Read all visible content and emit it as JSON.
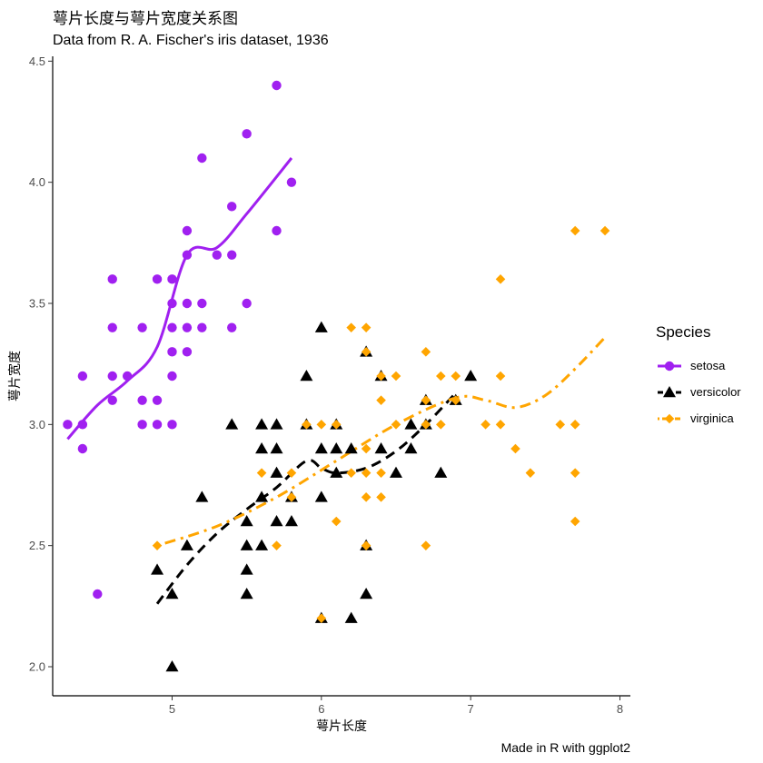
{
  "chart_data": {
    "type": "scatter",
    "title": "萼片长度与萼片宽度关系图",
    "subtitle": "Data from R. A. Fischer's iris dataset, 1936",
    "xlabel": "萼片长度",
    "ylabel": "萼片宽度",
    "caption": "Made in R with ggplot2",
    "xlim": [
      4.2,
      8.07
    ],
    "ylim": [
      1.88,
      4.52
    ],
    "xticks": [
      5,
      6,
      7,
      8
    ],
    "yticks": [
      2.0,
      2.5,
      3.0,
      3.5,
      4.0,
      4.5
    ],
    "xtick_labels": [
      "5",
      "6",
      "7",
      "8"
    ],
    "ytick_labels": [
      "2.0",
      "2.5",
      "3.0",
      "3.5",
      "4.0",
      "4.5"
    ],
    "legend": {
      "title": "Species",
      "position": "right"
    },
    "series": [
      {
        "name": "setosa",
        "color": "#A020F0",
        "marker": "circle",
        "line_style": "solid",
        "points": [
          [
            4.3,
            3.0
          ],
          [
            4.4,
            3.0
          ],
          [
            4.4,
            2.9
          ],
          [
            4.4,
            3.2
          ],
          [
            4.5,
            2.3
          ],
          [
            4.6,
            3.1
          ],
          [
            4.6,
            3.2
          ],
          [
            4.6,
            3.4
          ],
          [
            4.6,
            3.6
          ],
          [
            4.7,
            3.2
          ],
          [
            4.8,
            3.0
          ],
          [
            4.8,
            3.1
          ],
          [
            4.8,
            3.4
          ],
          [
            4.9,
            3.0
          ],
          [
            4.9,
            3.1
          ],
          [
            4.9,
            3.6
          ],
          [
            5.0,
            3.0
          ],
          [
            5.0,
            3.2
          ],
          [
            5.0,
            3.3
          ],
          [
            5.0,
            3.4
          ],
          [
            5.0,
            3.5
          ],
          [
            5.0,
            3.6
          ],
          [
            5.1,
            3.3
          ],
          [
            5.1,
            3.4
          ],
          [
            5.1,
            3.5
          ],
          [
            5.1,
            3.7
          ],
          [
            5.1,
            3.8
          ],
          [
            5.2,
            3.4
          ],
          [
            5.2,
            3.5
          ],
          [
            5.2,
            4.1
          ],
          [
            5.3,
            3.7
          ],
          [
            5.4,
            3.4
          ],
          [
            5.4,
            3.7
          ],
          [
            5.4,
            3.9
          ],
          [
            5.5,
            3.5
          ],
          [
            5.5,
            4.2
          ],
          [
            5.7,
            3.8
          ],
          [
            5.7,
            4.4
          ],
          [
            5.8,
            4.0
          ]
        ],
        "smooth": [
          [
            4.3,
            2.94
          ],
          [
            4.5,
            3.08
          ],
          [
            4.7,
            3.18
          ],
          [
            4.9,
            3.32
          ],
          [
            5.1,
            3.7
          ],
          [
            5.3,
            3.73
          ],
          [
            5.5,
            3.87
          ],
          [
            5.8,
            4.1
          ]
        ]
      },
      {
        "name": "versicolor",
        "color": "#000000",
        "marker": "triangle",
        "line_style": "dashed",
        "points": [
          [
            4.9,
            2.4
          ],
          [
            5.0,
            2.0
          ],
          [
            5.0,
            2.3
          ],
          [
            5.1,
            2.5
          ],
          [
            5.2,
            2.7
          ],
          [
            5.4,
            3.0
          ],
          [
            5.5,
            2.3
          ],
          [
            5.5,
            2.4
          ],
          [
            5.5,
            2.5
          ],
          [
            5.5,
            2.6
          ],
          [
            5.6,
            2.5
          ],
          [
            5.6,
            2.7
          ],
          [
            5.6,
            2.9
          ],
          [
            5.6,
            3.0
          ],
          [
            5.7,
            2.6
          ],
          [
            5.7,
            2.8
          ],
          [
            5.7,
            2.9
          ],
          [
            5.7,
            3.0
          ],
          [
            5.8,
            2.6
          ],
          [
            5.8,
            2.7
          ],
          [
            5.9,
            3.0
          ],
          [
            5.9,
            3.2
          ],
          [
            6.0,
            2.2
          ],
          [
            6.0,
            2.7
          ],
          [
            6.0,
            2.9
          ],
          [
            6.0,
            3.4
          ],
          [
            6.1,
            2.8
          ],
          [
            6.1,
            2.9
          ],
          [
            6.1,
            3.0
          ],
          [
            6.2,
            2.2
          ],
          [
            6.2,
            2.9
          ],
          [
            6.3,
            2.3
          ],
          [
            6.3,
            2.5
          ],
          [
            6.3,
            3.3
          ],
          [
            6.4,
            2.9
          ],
          [
            6.4,
            3.2
          ],
          [
            6.5,
            2.8
          ],
          [
            6.6,
            2.9
          ],
          [
            6.6,
            3.0
          ],
          [
            6.7,
            3.0
          ],
          [
            6.7,
            3.1
          ],
          [
            6.8,
            2.8
          ],
          [
            6.9,
            3.1
          ],
          [
            7.0,
            3.2
          ]
        ],
        "smooth": [
          [
            4.9,
            2.26
          ],
          [
            5.1,
            2.42
          ],
          [
            5.3,
            2.55
          ],
          [
            5.5,
            2.65
          ],
          [
            5.7,
            2.74
          ],
          [
            5.9,
            2.85
          ],
          [
            6.0,
            2.82
          ],
          [
            6.1,
            2.8
          ],
          [
            6.3,
            2.82
          ],
          [
            6.5,
            2.89
          ],
          [
            6.7,
            3.0
          ],
          [
            6.9,
            3.13
          ]
        ]
      },
      {
        "name": "virginica",
        "color": "#FFA500",
        "marker": "diamond",
        "line_style": "dotdash",
        "points": [
          [
            4.9,
            2.5
          ],
          [
            5.6,
            2.8
          ],
          [
            5.7,
            2.5
          ],
          [
            5.8,
            2.7
          ],
          [
            5.8,
            2.8
          ],
          [
            5.9,
            3.0
          ],
          [
            6.0,
            2.2
          ],
          [
            6.0,
            3.0
          ],
          [
            6.1,
            2.6
          ],
          [
            6.1,
            3.0
          ],
          [
            6.2,
            2.8
          ],
          [
            6.2,
            3.4
          ],
          [
            6.3,
            2.5
          ],
          [
            6.3,
            2.7
          ],
          [
            6.3,
            2.8
          ],
          [
            6.3,
            2.9
          ],
          [
            6.3,
            3.3
          ],
          [
            6.3,
            3.4
          ],
          [
            6.4,
            2.7
          ],
          [
            6.4,
            2.8
          ],
          [
            6.4,
            3.1
          ],
          [
            6.4,
            3.2
          ],
          [
            6.5,
            3.0
          ],
          [
            6.5,
            3.2
          ],
          [
            6.7,
            2.5
          ],
          [
            6.7,
            3.0
          ],
          [
            6.7,
            3.1
          ],
          [
            6.7,
            3.3
          ],
          [
            6.8,
            3.0
          ],
          [
            6.8,
            3.2
          ],
          [
            6.9,
            3.1
          ],
          [
            6.9,
            3.2
          ],
          [
            7.1,
            3.0
          ],
          [
            7.2,
            3.0
          ],
          [
            7.2,
            3.2
          ],
          [
            7.2,
            3.6
          ],
          [
            7.3,
            2.9
          ],
          [
            7.4,
            2.8
          ],
          [
            7.6,
            3.0
          ],
          [
            7.7,
            2.6
          ],
          [
            7.7,
            2.8
          ],
          [
            7.7,
            3.0
          ],
          [
            7.7,
            3.8
          ],
          [
            7.9,
            3.8
          ]
        ],
        "smooth": [
          [
            4.9,
            2.5
          ],
          [
            5.3,
            2.58
          ],
          [
            5.7,
            2.7
          ],
          [
            6.1,
            2.85
          ],
          [
            6.5,
            3.0
          ],
          [
            6.9,
            3.11
          ],
          [
            7.1,
            3.1
          ],
          [
            7.3,
            3.07
          ],
          [
            7.5,
            3.12
          ],
          [
            7.7,
            3.23
          ],
          [
            7.9,
            3.36
          ]
        ]
      }
    ]
  }
}
